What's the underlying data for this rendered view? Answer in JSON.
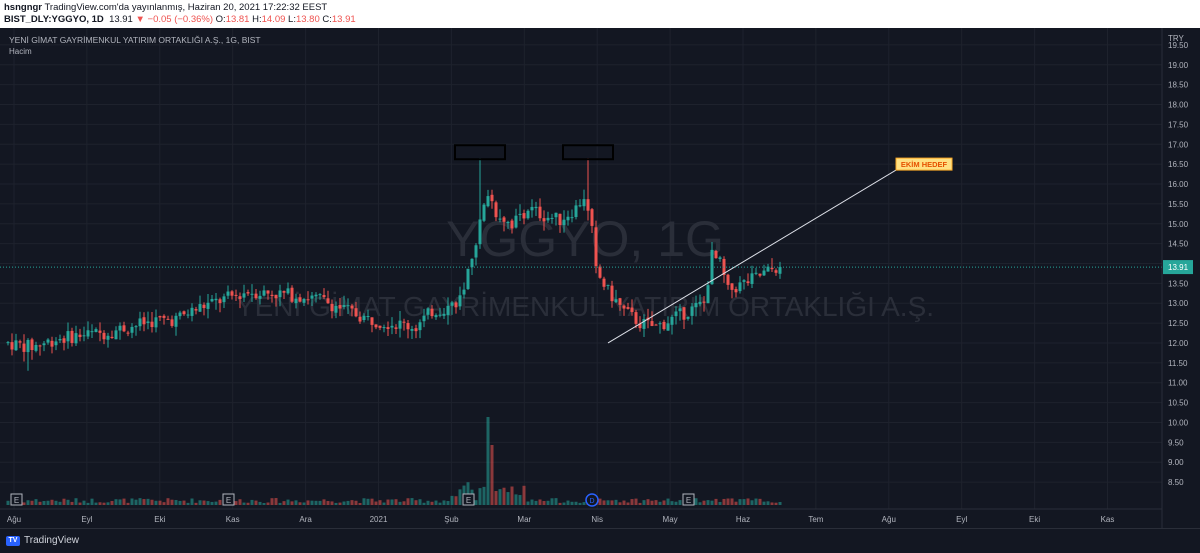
{
  "header": {
    "publisher": "hsngngr",
    "published_text": "TradingView.com'da yayınlanmış, Haziran 20, 2021 17:22:32 EEST",
    "symbol": "BIST_DLY:YGGYO, 1D",
    "last": "13.91",
    "change": "▼ −0.05 (−0.36%)",
    "o_label": "O:",
    "o": "13.81",
    "h_label": "H:",
    "h": "14.09",
    "l_label": "L:",
    "l": "13.80",
    "c_label": "C:",
    "c": "13.91"
  },
  "legend": {
    "title": "YENİ GİMAT GAYRİMENKUL YATIRIM ORTAKLIĞI A.Ş., 1G, BIST",
    "volume": "Hacim"
  },
  "watermark": {
    "symbol": "YGGYO, 1G",
    "name": "YENİ GİMAT GAYRİMENKUL YATIRIM ORTAKLIĞI A.Ş."
  },
  "price_axis": {
    "currency": "TRY",
    "ticks": [
      "19.50",
      "19.00",
      "18.50",
      "18.00",
      "17.50",
      "17.00",
      "16.50",
      "16.00",
      "15.50",
      "15.00",
      "14.50",
      "14.00",
      "13.50",
      "13.00",
      "12.50",
      "12.00",
      "11.50",
      "11.00",
      "10.50",
      "10.00",
      "9.50",
      "9.00",
      "8.50"
    ],
    "last_price_label": "13.91"
  },
  "time_axis": {
    "labels": [
      "Ağu",
      "Eyl",
      "Eki",
      "Kas",
      "Ara",
      "2021",
      "Şub",
      "Mar",
      "Nis",
      "May",
      "Haz",
      "Tem",
      "Ağu",
      "Eyl",
      "Eki",
      "Kas"
    ]
  },
  "annotation": {
    "label": "EKİM HEDEF"
  },
  "event_markers": {
    "earnings": "E",
    "dividend": "D"
  },
  "colors": {
    "background": "#131722",
    "up": "#26a69a",
    "down": "#ef5350",
    "annotation_fill": "#ffe082",
    "annotation_text": "#e65100",
    "trendline": "#e0e3eb"
  },
  "footer": {
    "brand": "TradingView"
  },
  "chart_data": {
    "type": "candlestick",
    "title": "YENİ GİMAT GAYRİMENKUL YATIRIM ORTAKLIĞI A.Ş., 1G, BIST",
    "ylim": [
      8.2,
      19.8
    ],
    "x_categories": [
      "Ağu",
      "Eyl",
      "Eki",
      "Kas",
      "Ara",
      "2021",
      "Şub",
      "Mar",
      "Nis",
      "May",
      "Haz",
      "Tem",
      "Ağu",
      "Eyl",
      "Eki",
      "Kas"
    ],
    "price_path": [
      [
        0,
        12.0
      ],
      [
        6,
        11.9
      ],
      [
        12,
        12.1
      ],
      [
        18,
        12.2
      ],
      [
        24,
        12.25
      ],
      [
        30,
        12.4
      ],
      [
        36,
        12.55
      ],
      [
        42,
        12.6
      ],
      [
        48,
        12.9
      ],
      [
        54,
        13.1
      ],
      [
        60,
        13.3
      ],
      [
        66,
        13.25
      ],
      [
        72,
        13.2
      ],
      [
        78,
        13.1
      ],
      [
        84,
        12.85
      ],
      [
        90,
        12.6
      ],
      [
        96,
        12.5
      ],
      [
        102,
        12.4
      ],
      [
        106,
        12.8
      ],
      [
        110,
        12.9
      ],
      [
        114,
        13.2
      ],
      [
        116,
        14.2
      ],
      [
        118,
        15.0
      ],
      [
        120,
        15.8
      ],
      [
        122,
        15.3
      ],
      [
        126,
        15.0
      ],
      [
        130,
        15.4
      ],
      [
        134,
        15.2
      ],
      [
        138,
        15.1
      ],
      [
        142,
        15.4
      ],
      [
        144,
        15.7
      ],
      [
        146,
        14.8
      ],
      [
        147,
        13.8
      ],
      [
        150,
        13.3
      ],
      [
        154,
        12.8
      ],
      [
        158,
        12.5
      ],
      [
        162,
        12.4
      ],
      [
        166,
        12.6
      ],
      [
        170,
        12.8
      ],
      [
        174,
        13.0
      ],
      [
        176,
        14.2
      ],
      [
        178,
        14.0
      ],
      [
        180,
        13.3
      ],
      [
        184,
        13.5
      ],
      [
        188,
        13.7
      ],
      [
        192,
        13.9
      ],
      [
        193,
        13.91
      ]
    ],
    "volume_spike_index": 120,
    "trend_lines": [
      {
        "from": {
          "index": 150,
          "price": 12.0
        },
        "to": {
          "index": 222,
          "price": 16.35
        }
      }
    ],
    "double_top_boxes": [
      {
        "index": 118,
        "price": 16.8
      },
      {
        "index": 145,
        "price": 16.8
      }
    ],
    "last_price": 13.91
  }
}
